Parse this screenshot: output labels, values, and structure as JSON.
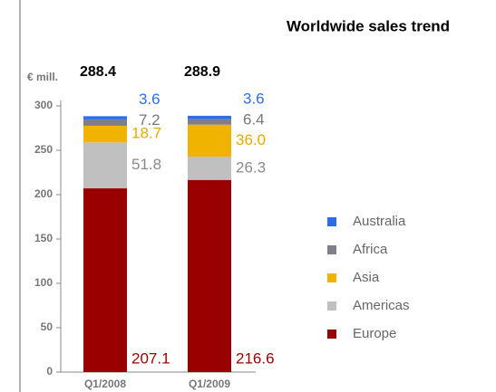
{
  "chart_data": {
    "type": "stacked-bar",
    "title": "Worldwide sales trend",
    "y_label": "€ mill.",
    "categories": [
      "Q1/2008",
      "Q1/2009"
    ],
    "totals": [
      288.4,
      288.9
    ],
    "series": [
      {
        "name": "Europe",
        "color": "#990000",
        "label_color": "#990000",
        "values": [
          207.1,
          216.6
        ]
      },
      {
        "name": "Americas",
        "color": "#c0c0c0",
        "label_color": "#8a8a8a",
        "values": [
          51.8,
          26.3
        ]
      },
      {
        "name": "Asia",
        "color": "#f0b400",
        "label_color": "#e8a800",
        "values": [
          18.7,
          36.0
        ],
        "value_labels": [
          "18.7",
          "36.0"
        ]
      },
      {
        "name": "Africa",
        "color": "#7f7f8c",
        "label_color": "#777777",
        "values": [
          7.2,
          6.4
        ]
      },
      {
        "name": "Australia",
        "color": "#2b6fe8",
        "label_color": "#2b6fe8",
        "values": [
          3.6,
          3.6
        ]
      }
    ],
    "ylim": [
      0,
      300
    ],
    "yticks": [
      0,
      50,
      100,
      150,
      200,
      250,
      300
    ]
  }
}
